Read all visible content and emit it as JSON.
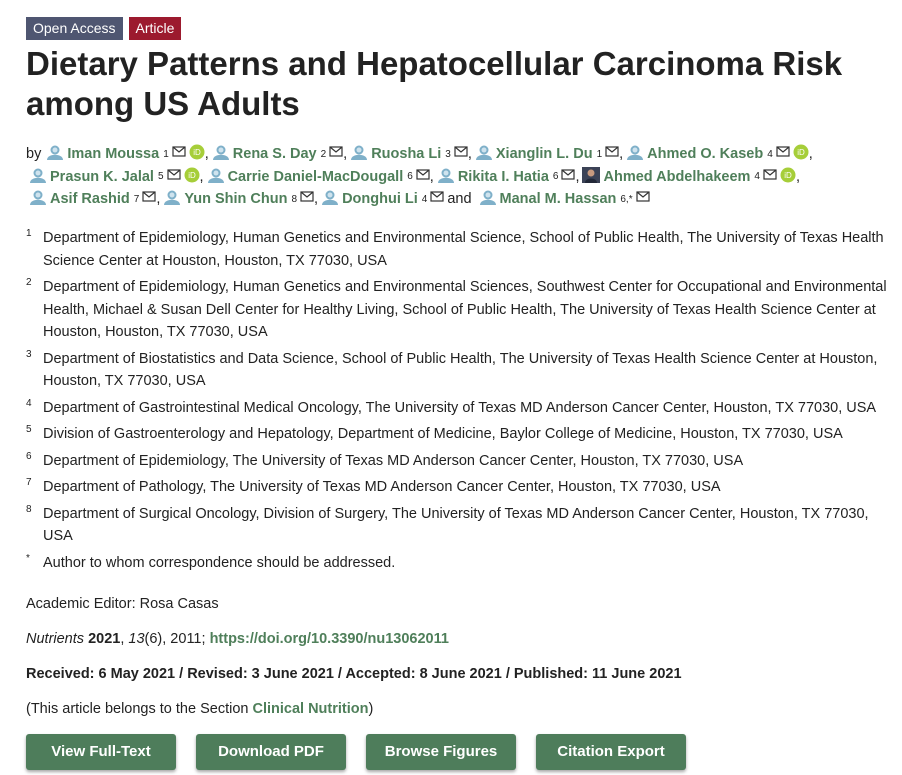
{
  "badges": [
    "Open Access",
    "Article"
  ],
  "title": "Dietary Patterns and Hepatocellular Carcinoma Risk among US Adults",
  "by": "by",
  "separator": ",",
  "and": "and",
  "author_lines": [
    [
      {
        "name": "Iman Moussa",
        "sup": "1",
        "orcid": true
      },
      {
        "name": "Rena S. Day",
        "sup": "2",
        "orcid": false
      },
      {
        "name": "Ruosha Li",
        "sup": "3",
        "orcid": false
      },
      {
        "name": "Xianglin L. Du",
        "sup": "1",
        "orcid": false
      },
      {
        "name": "Ahmed O. Kaseb",
        "sup": "4",
        "orcid": true
      }
    ],
    [
      {
        "name": "Prasun K. Jalal",
        "sup": "5",
        "orcid": true
      },
      {
        "name": "Carrie Daniel-MacDougall",
        "sup": "6",
        "orcid": false
      },
      {
        "name": "Rikita I. Hatia",
        "sup": "6",
        "orcid": false
      },
      {
        "name": "Ahmed Abdelhakeem",
        "sup": "4",
        "orcid": true,
        "photo": true
      }
    ],
    [
      {
        "name": "Asif Rashid",
        "sup": "7",
        "orcid": false
      },
      {
        "name": "Yun Shin Chun",
        "sup": "8",
        "orcid": false
      },
      {
        "name": "Donghui Li",
        "sup": "4",
        "orcid": false
      },
      {
        "name": "Manal M. Hassan",
        "sup": "6,*",
        "orcid": false
      }
    ]
  ],
  "affiliations": [
    {
      "num": "1",
      "text": "Department of Epidemiology, Human Genetics and Environmental Science, School of Public Health, The University of Texas Health Science Center at Houston, Houston, TX 77030, USA"
    },
    {
      "num": "2",
      "text": "Department of Epidemiology, Human Genetics and Environmental Sciences, Southwest Center for Occupational and Environmental Health, Michael & Susan Dell Center for Healthy Living, School of Public Health, The University of Texas Health Science Center at Houston, Houston, TX 77030, USA"
    },
    {
      "num": "3",
      "text": "Department of Biostatistics and Data Science, School of Public Health, The University of Texas Health Science Center at Houston, Houston, TX 77030, USA"
    },
    {
      "num": "4",
      "text": "Department of Gastrointestinal Medical Oncology, The University of Texas MD Anderson Cancer Center, Houston, TX 77030, USA"
    },
    {
      "num": "5",
      "text": "Division of Gastroenterology and Hepatology, Department of Medicine, Baylor College of Medicine, Houston, TX 77030, USA"
    },
    {
      "num": "6",
      "text": "Department of Epidemiology, The University of Texas MD Anderson Cancer Center, Houston, TX 77030, USA"
    },
    {
      "num": "7",
      "text": "Department of Pathology, The University of Texas MD Anderson Cancer Center, Houston, TX 77030, USA"
    },
    {
      "num": "8",
      "text": "Department of Surgical Oncology, Division of Surgery, The University of Texas MD Anderson Cancer Center, Houston, TX 77030, USA"
    },
    {
      "num": "*",
      "text": "Author to whom correspondence should be addressed."
    }
  ],
  "editor": "Academic Editor: Rosa Casas",
  "citation": {
    "journal": "Nutrients",
    "year": "2021",
    "volume": "13",
    "details": "(6), 2011;",
    "doi": "https://doi.org/10.3390/nu13062011"
  },
  "dates": "Received: 6 May 2021 / Revised: 3 June 2021 / Accepted: 8 June 2021 / Published: 11 June 2021",
  "section": {
    "prefix": "(This article belongs to the Section",
    "name": "Clinical Nutrition",
    "suffix": ")"
  },
  "buttons": [
    "View Full-Text",
    "Download PDF",
    "Browse Figures",
    "Citation Export"
  ]
}
